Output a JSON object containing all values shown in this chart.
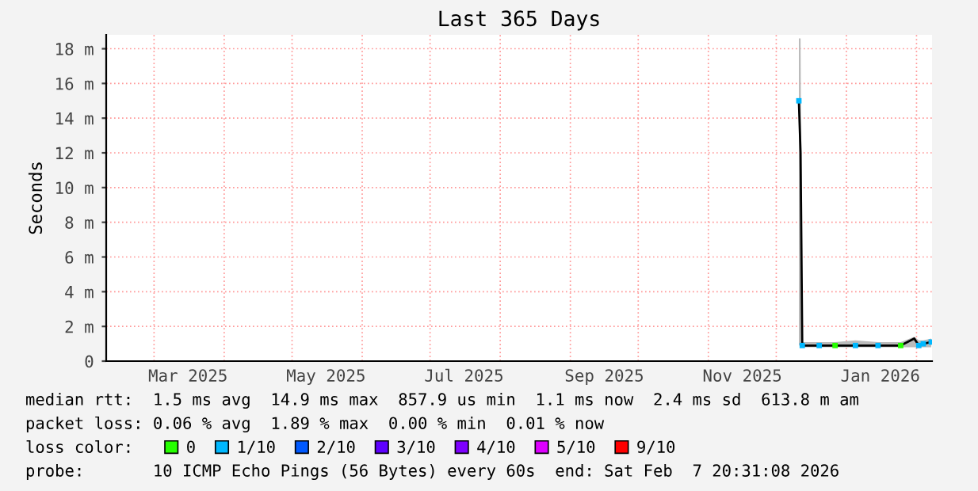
{
  "chart_data": {
    "type": "line",
    "title": "Last 365 Days",
    "ylabel": "Seconds",
    "legend": "bottom",
    "grid": true,
    "marker": "square",
    "x": [
      "2025-12-11T00:00",
      "2025-12-11T18:00",
      "2025-12-12T12:00",
      "2025-12-20",
      "2025-12-27",
      "2026-01-05",
      "2026-01-15",
      "2026-01-25",
      "2026-01-31",
      "2026-02-02",
      "2026-02-04",
      "2026-02-07T12:00"
    ],
    "xlim": [
      "2025-02-07T20:31",
      "2026-02-07T20:31"
    ],
    "xticks": [
      {
        "value": "2025-03-01",
        "label": null
      },
      {
        "value": "2025-03-16",
        "label": "Mar 2025"
      },
      {
        "value": "2025-04-01",
        "label": null
      },
      {
        "value": "2025-05-01",
        "label": null
      },
      {
        "value": "2025-05-16",
        "label": "May 2025"
      },
      {
        "value": "2025-06-01",
        "label": null
      },
      {
        "value": "2025-07-01",
        "label": null
      },
      {
        "value": "2025-07-16",
        "label": "Jul 2025"
      },
      {
        "value": "2025-08-01",
        "label": null
      },
      {
        "value": "2025-09-01",
        "label": null
      },
      {
        "value": "2025-09-16",
        "label": "Sep 2025"
      },
      {
        "value": "2025-10-01",
        "label": null
      },
      {
        "value": "2025-11-01",
        "label": null
      },
      {
        "value": "2025-11-16",
        "label": "Nov 2025"
      },
      {
        "value": "2025-12-01",
        "label": null
      },
      {
        "value": "2026-01-01",
        "label": null
      },
      {
        "value": "2026-01-16",
        "label": "Jan 2026"
      },
      {
        "value": "2026-02-01",
        "label": null
      }
    ],
    "ylim": [
      0,
      18.8
    ],
    "yticks": [
      0,
      {
        "value": 2,
        "label": "2 m"
      },
      {
        "value": 4,
        "label": "4 m"
      },
      {
        "value": 6,
        "label": "6 m"
      },
      {
        "value": 8,
        "label": "8 m"
      },
      {
        "value": 10,
        "label": "10 m"
      },
      {
        "value": 12,
        "label": "12 m"
      },
      {
        "value": 14,
        "label": "14 m"
      },
      {
        "value": 16,
        "label": "16 m"
      },
      {
        "value": 18,
        "label": "18 m"
      }
    ],
    "series": [
      {
        "color": "#000000",
        "marker": "none",
        "values": [
          15,
          12,
          0.9,
          0.9,
          0.9,
          0.9,
          0.9,
          0.9,
          1.3,
          0.9,
          1.0,
          1.1
        ],
        "lower": [
          0.9,
          0.9,
          0.8,
          0.8,
          0.8,
          0.8,
          0.8,
          0.8,
          0.8,
          0.8,
          0.8,
          0.8
        ],
        "upper": [
          18.6,
          18.6,
          1.1,
          1.1,
          1.1,
          1.2,
          1.1,
          1.1,
          1.4,
          1.2,
          1.2,
          1.3
        ]
      },
      {
        "type": "scatter",
        "name": "0",
        "color": "#26ff00",
        "values": [
          null,
          null,
          null,
          null,
          0.9,
          null,
          null,
          0.9,
          null,
          null,
          null,
          null
        ]
      },
      {
        "type": "scatter",
        "name": "1/10",
        "color": "#00b8ff",
        "values": [
          15,
          null,
          0.9,
          0.9,
          null,
          0.9,
          0.9,
          null,
          null,
          0.9,
          1.0,
          1.1
        ]
      },
      {
        "type": "scatter",
        "name": "2/10",
        "color": "#0059ff",
        "values": [
          null,
          null,
          null,
          null,
          null,
          null,
          null,
          null,
          null,
          null,
          null,
          null
        ]
      },
      {
        "type": "scatter",
        "name": "3/10",
        "color": "#5e00ff",
        "values": [
          null,
          null,
          null,
          null,
          null,
          null,
          null,
          null,
          null,
          null,
          null,
          null
        ]
      },
      {
        "type": "scatter",
        "name": "4/10",
        "color": "#7e00ff",
        "values": [
          null,
          null,
          null,
          null,
          null,
          null,
          null,
          null,
          null,
          null,
          null,
          null
        ]
      },
      {
        "type": "scatter",
        "name": "5/10",
        "color": "#dd00ff",
        "values": [
          null,
          null,
          null,
          null,
          null,
          null,
          null,
          null,
          null,
          null,
          null,
          null
        ]
      },
      {
        "type": "scatter",
        "name": "9/10",
        "color": "#ff0000",
        "values": [
          null,
          null,
          null,
          null,
          null,
          null,
          null,
          null,
          null,
          null,
          null,
          null
        ]
      }
    ],
    "annotations": [
      "median rtt:  1.5 ms avg  14.9 ms max  857.9 us min  1.1 ms now  2.4 ms sd  613.8 m am",
      "packet loss: 0.06 % avg  1.89 % max  0.00 % min  0.01 % now",
      "loss color:",
      "probe:       10 ICMP Echo Pings (56 Bytes) every 60s  end: Sat Feb  7 20:31:08 2026"
    ]
  }
}
